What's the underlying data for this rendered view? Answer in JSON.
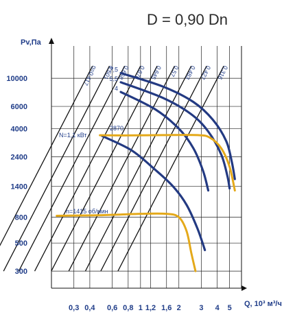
{
  "chart_data": {
    "type": "line",
    "title": "D = 0,90 Dn",
    "xlabel": "Q, 10³ м³/ч",
    "ylabel": "Pv,Па",
    "x_ticks": [
      0.3,
      0.4,
      0.6,
      0.8,
      1,
      1.2,
      1.6,
      2,
      3,
      4,
      5
    ],
    "x_tick_labels": [
      "0,3",
      "0,4",
      "0,6",
      "0,8",
      "1",
      "1,2",
      "1,6",
      "2",
      "3",
      "4",
      "5"
    ],
    "y_ticks": [
      300,
      500,
      800,
      1400,
      2400,
      4000,
      6000,
      10000
    ],
    "y_tick_labels": [
      "300",
      "500",
      "800",
      "1400",
      "2400",
      "4000",
      "6000",
      "10000"
    ],
    "xlim": [
      0.2,
      6.2
    ],
    "ylim": [
      220,
      18000
    ],
    "scale": "log-log",
    "grid": true,
    "pressure_curves": [
      {
        "name": "7,5",
        "points": [
          [
            0.7,
            11000
          ],
          [
            1.5,
            8600
          ],
          [
            2.6,
            6500
          ],
          [
            3.7,
            4700
          ],
          [
            4.7,
            3200
          ],
          [
            5.2,
            2200
          ],
          [
            5.5,
            1600
          ]
        ]
      },
      {
        "name": "5,5",
        "points": [
          [
            0.7,
            9300
          ],
          [
            1.5,
            7000
          ],
          [
            2.5,
            5200
          ],
          [
            3.4,
            3800
          ],
          [
            4.3,
            2500
          ],
          [
            4.8,
            1700
          ],
          [
            5.0,
            1350
          ]
        ]
      },
      {
        "name": "4",
        "points": [
          [
            0.7,
            7800
          ],
          [
            1.3,
            5700
          ],
          [
            2.0,
            4000
          ],
          [
            2.6,
            2800
          ],
          [
            3.1,
            1850
          ],
          [
            3.4,
            1300
          ]
        ]
      },
      {
        "name": "",
        "points": [
          [
            0.5,
            3500
          ],
          [
            0.85,
            2700
          ],
          [
            1.3,
            1900
          ],
          [
            1.8,
            1400
          ],
          [
            2.3,
            1000
          ],
          [
            2.8,
            650
          ],
          [
            3.2,
            440
          ]
        ]
      }
    ],
    "power_curves": [
      {
        "name": "n=2870",
        "points": [
          [
            0.48,
            3550
          ],
          [
            0.75,
            3540
          ],
          [
            1.5,
            3560
          ],
          [
            2.8,
            3560
          ],
          [
            3.5,
            3400
          ],
          [
            4.3,
            2800
          ],
          [
            5.0,
            2000
          ],
          [
            5.5,
            1300
          ]
        ]
      },
      {
        "name": "n=1415 об/мин",
        "points": [
          [
            0.22,
            820
          ],
          [
            0.5,
            830
          ],
          [
            1.0,
            850
          ],
          [
            1.6,
            850
          ],
          [
            2.0,
            800
          ],
          [
            2.3,
            620
          ],
          [
            2.5,
            420
          ],
          [
            2.7,
            300
          ]
        ]
      }
    ],
    "efficiency_lines": [
      {
        "label": "η=0,417",
        "x_top": 0.42
      },
      {
        "label": "0,601",
        "x_top": 0.57
      },
      {
        "label": "0,658",
        "x_top": 0.75
      },
      {
        "label": "0,676",
        "x_top": 1.0
      },
      {
        "label": "0,645",
        "x_top": 1.35
      },
      {
        "label": "0,57",
        "x_top": 1.85
      },
      {
        "label": "0,483",
        "x_top": 2.5
      },
      {
        "label": "0,427",
        "x_top": 3.3
      },
      {
        "label": "0,316",
        "x_top": 4.5
      }
    ],
    "annotations": {
      "power_label": "N=1,1 кВт",
      "rpm_high": "2870",
      "rpm_low": "n=1415 об/мин"
    },
    "colors": {
      "pressure": "#233a82",
      "power": "#e4a91a",
      "lines": "#111111",
      "text": "#1f3c88"
    }
  }
}
